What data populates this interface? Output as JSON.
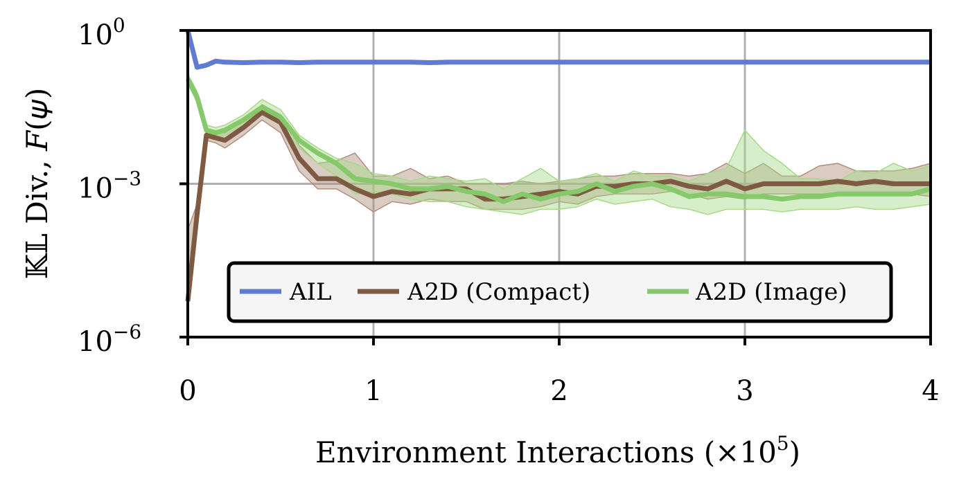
{
  "chart_data": {
    "type": "line",
    "title": "",
    "xlabel": "Environment Interactions (×10",
    "xlabel_exp": "5",
    "xlabel_suffix": ")",
    "ylabel": "𝕂𝕃 Div., 𝐹(𝜓)",
    "xlim": [
      0,
      4
    ],
    "ylim_log10": [
      -6,
      0
    ],
    "yscale": "log",
    "grid": true,
    "legend_position": "lower-center",
    "x_ticks": [
      {
        "value": 0,
        "label": "0"
      },
      {
        "value": 1,
        "label": "1"
      },
      {
        "value": 2,
        "label": "2"
      },
      {
        "value": 3,
        "label": "3"
      },
      {
        "value": 4,
        "label": "4"
      }
    ],
    "y_ticks": [
      {
        "exp": 0,
        "base": "10",
        "sup": "0"
      },
      {
        "exp": -3,
        "base": "10",
        "sup": "−3"
      },
      {
        "exp": -6,
        "base": "10",
        "sup": "−6"
      }
    ],
    "x": [
      0.0,
      0.05,
      0.1,
      0.15,
      0.2,
      0.3,
      0.4,
      0.5,
      0.6,
      0.7,
      0.8,
      0.9,
      1.0,
      1.1,
      1.2,
      1.3,
      1.4,
      1.5,
      1.6,
      1.7,
      1.8,
      1.9,
      2.0,
      2.1,
      2.2,
      2.3,
      2.4,
      2.5,
      2.6,
      2.7,
      2.8,
      2.9,
      3.0,
      3.1,
      3.2,
      3.3,
      3.4,
      3.5,
      3.6,
      3.7,
      3.8,
      3.9,
      4.0
    ],
    "series": [
      {
        "name": "AIL",
        "color": "#5f7bd2",
        "log10_values": [
          0.0,
          -0.72,
          -0.68,
          -0.6,
          -0.62,
          -0.63,
          -0.62,
          -0.62,
          -0.63,
          -0.62,
          -0.62,
          -0.62,
          -0.62,
          -0.62,
          -0.62,
          -0.63,
          -0.62,
          -0.62,
          -0.62,
          -0.62,
          -0.62,
          -0.62,
          -0.62,
          -0.62,
          -0.62,
          -0.62,
          -0.62,
          -0.62,
          -0.62,
          -0.62,
          -0.62,
          -0.62,
          -0.62,
          -0.62,
          -0.62,
          -0.62,
          -0.62,
          -0.62,
          -0.62,
          -0.62,
          -0.62,
          -0.62,
          -0.62
        ]
      },
      {
        "name": "A2D (Compact)",
        "color": "#7d5a41",
        "log10_values": [
          -5.3,
          -3.6,
          -2.05,
          -2.1,
          -2.15,
          -1.9,
          -1.6,
          -1.8,
          -2.5,
          -2.9,
          -2.9,
          -3.1,
          -3.25,
          -3.15,
          -3.2,
          -3.1,
          -3.1,
          -3.1,
          -3.3,
          -3.3,
          -3.25,
          -3.2,
          -3.15,
          -3.2,
          -3.05,
          -3.05,
          -3.0,
          -3.0,
          -2.95,
          -3.05,
          -3.1,
          -2.95,
          -3.1,
          -3.0,
          -3.0,
          -3.0,
          -3.0,
          -2.95,
          -3.0,
          -2.95,
          -3.0,
          -3.0,
          -3.0
        ]
      },
      {
        "name": "A2D (Image)",
        "color": "#86c96a",
        "log10_values": [
          -0.95,
          -1.3,
          -1.95,
          -2.0,
          -1.95,
          -1.75,
          -1.5,
          -1.7,
          -2.15,
          -2.4,
          -2.6,
          -2.9,
          -2.95,
          -3.0,
          -3.1,
          -3.1,
          -3.05,
          -3.15,
          -3.2,
          -3.35,
          -3.2,
          -3.3,
          -3.2,
          -3.15,
          -3.0,
          -3.15,
          -3.05,
          -3.0,
          -3.1,
          -3.25,
          -3.2,
          -3.2,
          -3.25,
          -3.25,
          -3.3,
          -3.25,
          -3.25,
          -3.2,
          -3.2,
          -3.2,
          -3.2,
          -3.2,
          -3.1
        ]
      }
    ],
    "bands": [
      {
        "series": "A2D (Compact)",
        "color": "#b08e7b",
        "log10_upper": [
          -3.9,
          -3.4,
          -1.95,
          -2.0,
          -2.0,
          -1.75,
          -1.45,
          -1.65,
          -2.25,
          -2.6,
          -2.55,
          -2.4,
          -2.85,
          -2.85,
          -2.7,
          -2.9,
          -2.85,
          -3.0,
          -3.0,
          -3.0,
          -2.95,
          -3.0,
          -2.95,
          -2.9,
          -2.85,
          -2.85,
          -2.8,
          -2.8,
          -2.8,
          -2.85,
          -2.8,
          -2.6,
          -2.8,
          -2.6,
          -2.85,
          -2.85,
          -2.65,
          -2.6,
          -2.75,
          -2.75,
          -2.75,
          -2.7,
          -2.6
        ],
        "log10_lower": [
          -5.3,
          -3.8,
          -2.15,
          -2.2,
          -2.3,
          -2.05,
          -1.75,
          -2.0,
          -2.75,
          -3.1,
          -3.1,
          -3.3,
          -3.55,
          -3.35,
          -3.4,
          -3.3,
          -3.35,
          -3.35,
          -3.5,
          -3.5,
          -3.5,
          -3.45,
          -3.35,
          -3.4,
          -3.25,
          -3.2,
          -3.2,
          -3.2,
          -3.15,
          -3.2,
          -3.3,
          -3.25,
          -3.3,
          -3.2,
          -3.2,
          -3.2,
          -3.2,
          -3.2,
          -3.2,
          -3.2,
          -3.2,
          -3.2,
          -3.25
        ]
      },
      {
        "series": "A2D (Image)",
        "color": "#a6d98a",
        "log10_upper": [
          -0.85,
          -1.2,
          -1.85,
          -1.9,
          -1.85,
          -1.65,
          -1.35,
          -1.55,
          -2.05,
          -2.3,
          -2.5,
          -2.6,
          -2.8,
          -2.85,
          -2.95,
          -2.85,
          -2.9,
          -2.95,
          -2.9,
          -3.1,
          -2.9,
          -2.7,
          -2.95,
          -2.9,
          -2.8,
          -2.95,
          -2.75,
          -2.85,
          -2.85,
          -2.95,
          -2.8,
          -2.7,
          -1.95,
          -2.35,
          -2.6,
          -2.9,
          -2.9,
          -2.95,
          -2.75,
          -2.8,
          -2.6,
          -2.75,
          -2.65
        ],
        "log10_lower": [
          -1.05,
          -1.4,
          -2.05,
          -2.1,
          -2.05,
          -1.85,
          -1.65,
          -1.85,
          -2.3,
          -2.6,
          -2.85,
          -3.2,
          -3.15,
          -3.2,
          -3.3,
          -3.35,
          -3.35,
          -3.45,
          -3.5,
          -3.55,
          -3.6,
          -3.5,
          -3.5,
          -3.45,
          -3.3,
          -3.4,
          -3.35,
          -3.3,
          -3.45,
          -3.5,
          -3.6,
          -3.5,
          -3.5,
          -3.5,
          -3.55,
          -3.5,
          -3.5,
          -3.5,
          -3.45,
          -3.5,
          -3.5,
          -3.45,
          -3.4
        ]
      }
    ]
  }
}
